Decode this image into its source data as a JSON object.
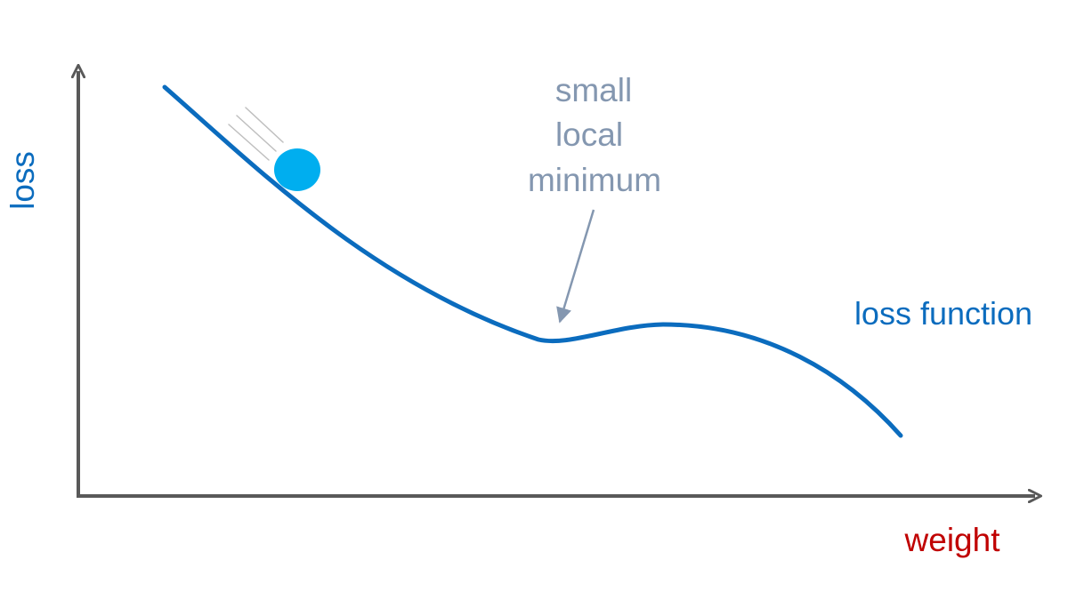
{
  "labels": {
    "y_axis": "loss",
    "x_axis": "weight",
    "curve": "loss function",
    "annotation": [
      "small",
      "local",
      "minimum"
    ]
  },
  "colors": {
    "axis": "#595959",
    "curve": "#0B6CBE",
    "ball": "#00AEEF",
    "annotation": "#8497B0",
    "x_label": "#C00000",
    "motion_lines": "#BFBFBF"
  },
  "icons": {
    "ball": "ball-icon",
    "motion": "motion-lines-icon"
  }
}
